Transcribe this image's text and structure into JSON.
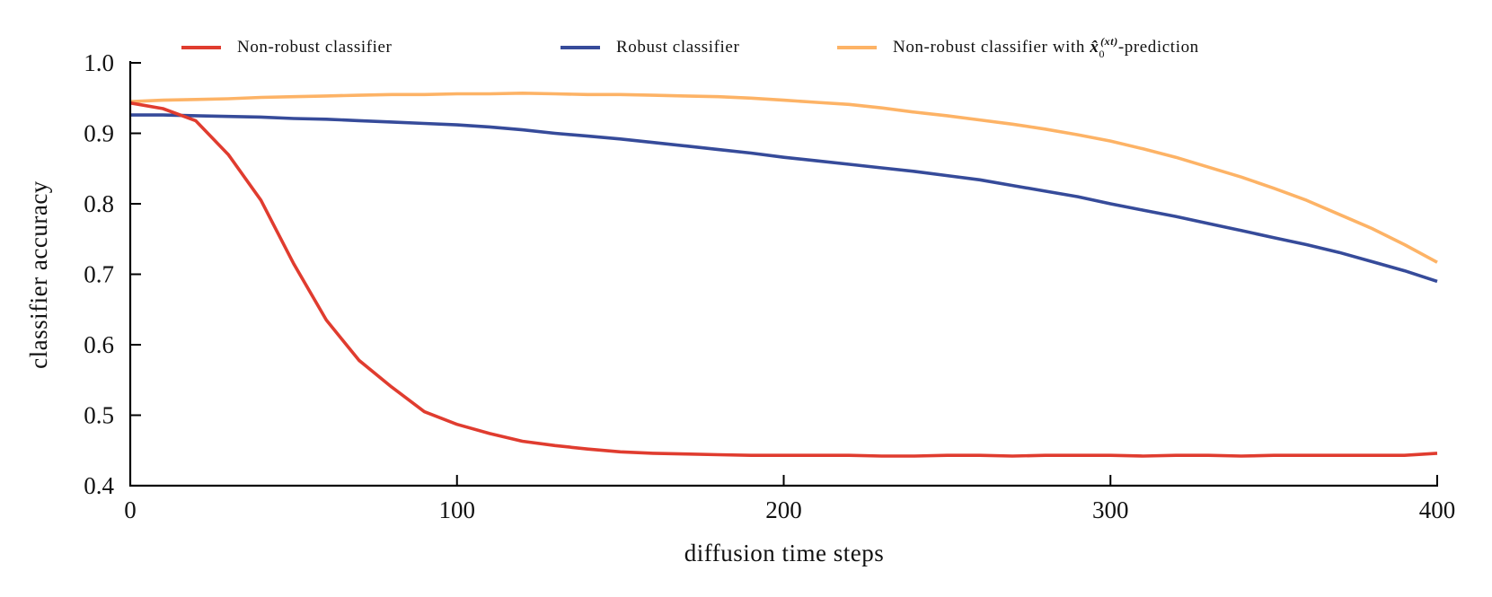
{
  "chart_data": {
    "type": "line",
    "title": "",
    "xlabel": "diffusion time steps",
    "ylabel": "classifier accuracy",
    "xlim": [
      0,
      400
    ],
    "ylim": [
      0.4,
      1.0
    ],
    "xticks": [
      "0",
      "100",
      "200",
      "300",
      "400"
    ],
    "yticks": [
      "0.4",
      "0.5",
      "0.6",
      "0.7",
      "0.8",
      "0.9",
      "1.0"
    ],
    "grid": false,
    "legend_placement": "top",
    "x": [
      0,
      10,
      20,
      30,
      40,
      50,
      60,
      70,
      80,
      90,
      100,
      110,
      120,
      130,
      140,
      150,
      160,
      170,
      180,
      190,
      200,
      210,
      220,
      230,
      240,
      250,
      260,
      270,
      280,
      290,
      300,
      310,
      320,
      330,
      340,
      350,
      360,
      370,
      380,
      390,
      400
    ],
    "series": [
      {
        "name": "Non-robust classifier",
        "color": "#e03c2f",
        "values": [
          0.943,
          0.935,
          0.918,
          0.87,
          0.805,
          0.715,
          0.635,
          0.578,
          0.54,
          0.505,
          0.487,
          0.474,
          0.463,
          0.457,
          0.452,
          0.448,
          0.446,
          0.445,
          0.444,
          0.443,
          0.443,
          0.443,
          0.443,
          0.442,
          0.442,
          0.443,
          0.443,
          0.442,
          0.443,
          0.443,
          0.443,
          0.442,
          0.443,
          0.443,
          0.442,
          0.443,
          0.443,
          0.443,
          0.443,
          0.443,
          0.446
        ]
      },
      {
        "name": "Robust classifier",
        "color": "#364b9a",
        "values": [
          0.926,
          0.926,
          0.925,
          0.924,
          0.923,
          0.921,
          0.92,
          0.918,
          0.916,
          0.914,
          0.912,
          0.909,
          0.905,
          0.9,
          0.896,
          0.892,
          0.887,
          0.882,
          0.877,
          0.872,
          0.866,
          0.861,
          0.856,
          0.851,
          0.846,
          0.84,
          0.834,
          0.826,
          0.818,
          0.81,
          0.8,
          0.791,
          0.782,
          0.772,
          0.762,
          0.752,
          0.742,
          0.731,
          0.718,
          0.705,
          0.69
        ]
      },
      {
        "name": "Non-robust classifier with x̂0(xt)-prediction",
        "color": "#fdb366",
        "values": [
          0.945,
          0.947,
          0.948,
          0.949,
          0.951,
          0.952,
          0.953,
          0.954,
          0.955,
          0.955,
          0.956,
          0.956,
          0.957,
          0.956,
          0.955,
          0.955,
          0.954,
          0.953,
          0.952,
          0.95,
          0.947,
          0.944,
          0.941,
          0.936,
          0.93,
          0.925,
          0.919,
          0.913,
          0.906,
          0.898,
          0.889,
          0.878,
          0.866,
          0.852,
          0.838,
          0.822,
          0.805,
          0.785,
          0.765,
          0.742,
          0.717
        ]
      }
    ]
  },
  "legend": {
    "items": [
      {
        "label": "Non-robust classifier"
      },
      {
        "label": "Robust classifier"
      },
      {
        "prefix": "Non-robust classifier with ",
        "math_base": "x̂",
        "math_sub": "0",
        "math_sup": "(xt)",
        "suffix": "-prediction"
      }
    ]
  }
}
